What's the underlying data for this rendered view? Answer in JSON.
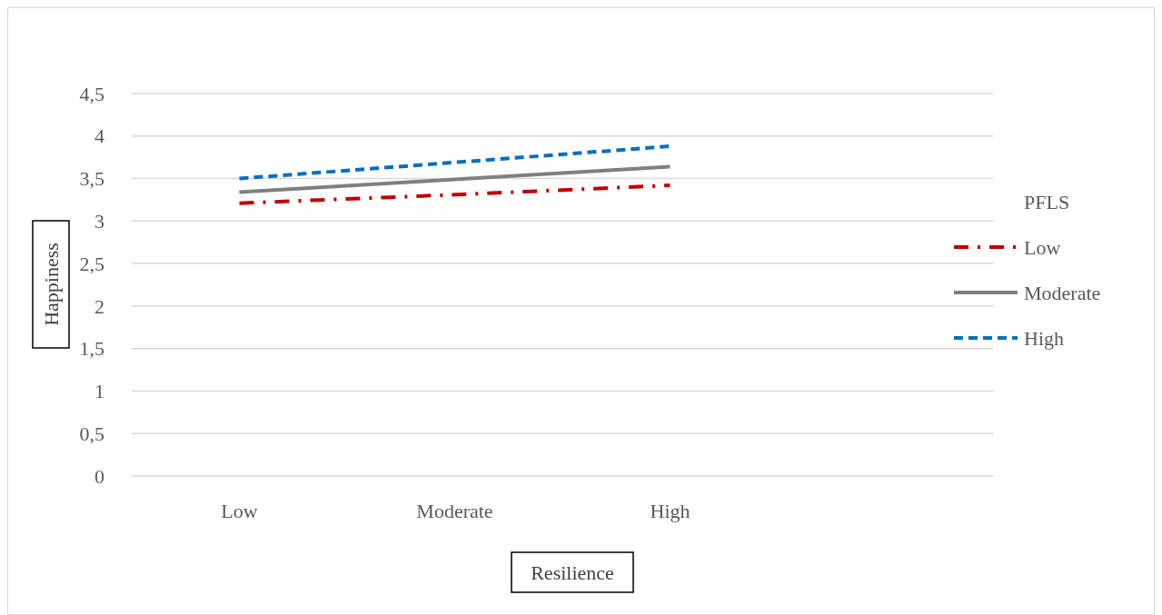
{
  "chart_data": {
    "type": "line",
    "xlabel": "Resilience",
    "ylabel": "Happiness",
    "legend_title": "PFLS",
    "categories": [
      "Low",
      "Moderate",
      "High",
      null
    ],
    "series": [
      {
        "name": "Low",
        "color": "#c00000",
        "line_style": "dashdot",
        "values": [
          3.21,
          3.31,
          3.42,
          null
        ]
      },
      {
        "name": "Moderate",
        "color": "#808080",
        "line_style": "solid",
        "values": [
          3.34,
          3.49,
          3.64,
          null
        ]
      },
      {
        "name": "High",
        "color": "#0070c0",
        "line_style": "dashed",
        "values": [
          3.5,
          3.69,
          3.88,
          null
        ]
      }
    ],
    "ylim": [
      0,
      4.5
    ],
    "yticks": [
      0,
      {
        "value": 0.5,
        "label": "0,5"
      },
      1,
      {
        "value": 1.5,
        "label": "1,5"
      },
      2,
      {
        "value": 2.5,
        "label": "2,5"
      },
      3,
      {
        "value": 3.5,
        "label": "3,5"
      },
      4,
      {
        "value": 4.5,
        "label": "4,5"
      }
    ],
    "grid": "y",
    "legend": "right"
  }
}
